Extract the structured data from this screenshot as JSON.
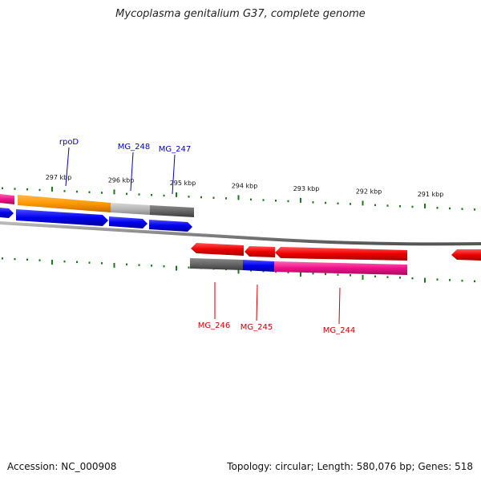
{
  "title": "Mycoplasma genitalium G37, complete genome",
  "footer": {
    "accession": "Accession: NC_000908",
    "summary": "Topology: circular; Length: 580,076 bp; Genes: 518"
  },
  "colors": {
    "tick": "#1a7a1a",
    "forward_label": "#0000cc",
    "reverse_label": "#cc0000",
    "backbone": "#888888",
    "orange": "#ff9900",
    "light_gray": "#b8b8b8",
    "dark_gray": "#666666",
    "blue": "#0000ee",
    "red": "#ee0000",
    "magenta": "#ee1188"
  },
  "kbp_labels": [
    "297 kbp",
    "296 kbp",
    "295 kbp",
    "294 kbp",
    "293 kbp",
    "292 kbp",
    "291 kbp"
  ],
  "forward_labels": [
    "rpoD",
    "MG_248",
    "MG_247"
  ],
  "reverse_labels": [
    "MG_246",
    "MG_245",
    "MG_244"
  ]
}
